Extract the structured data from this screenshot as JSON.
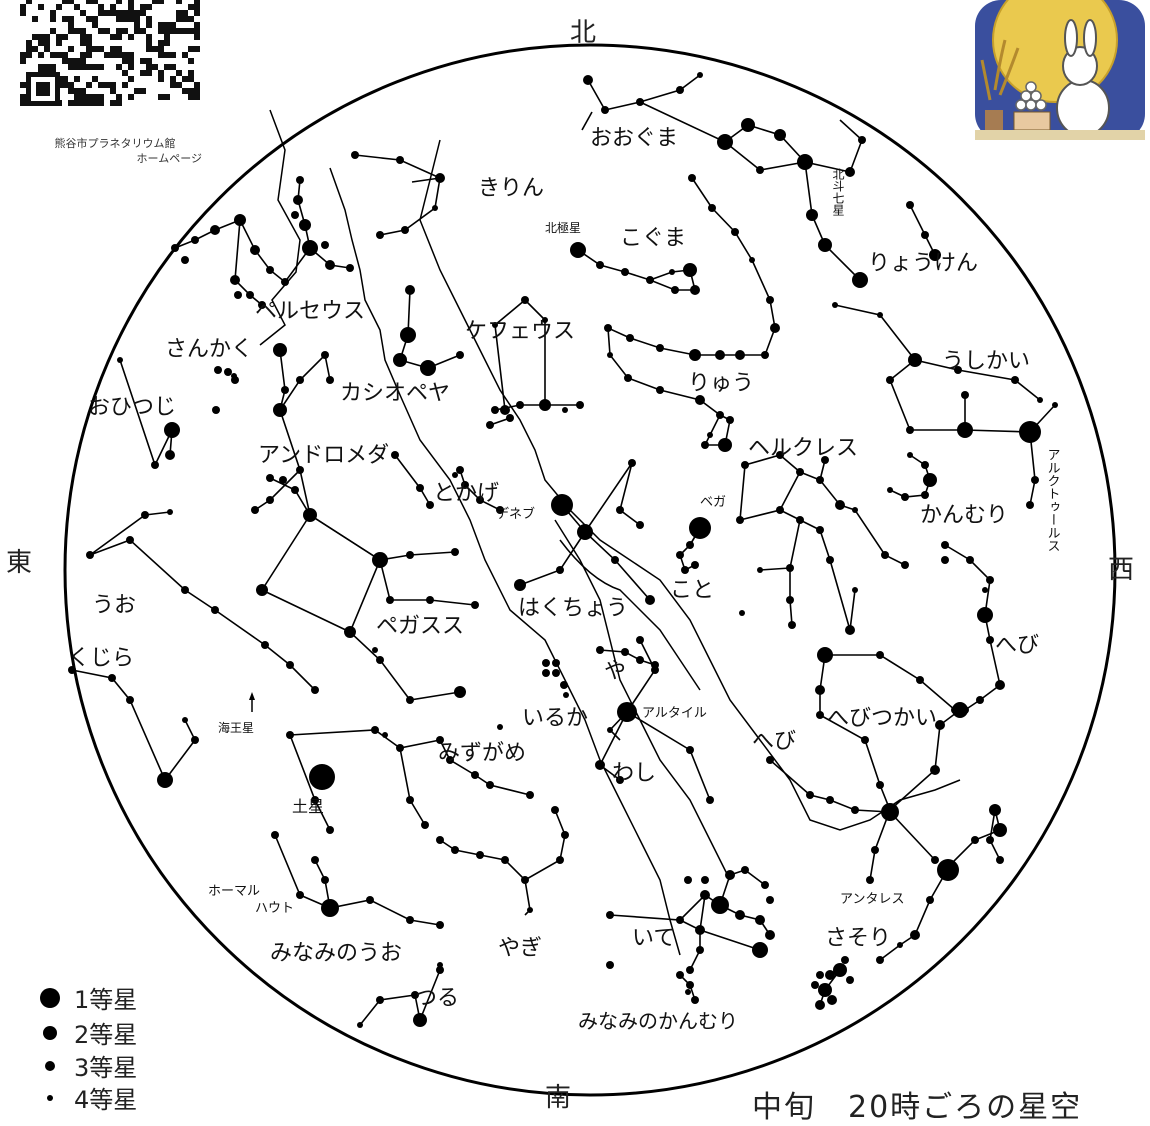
{
  "directions": {
    "north": "北",
    "south": "南",
    "east": "東",
    "west": "西"
  },
  "caption": "中旬　20時ごろの星空",
  "qr_caption": {
    "line1": "熊谷市プラネタリウム館",
    "line2": "ホームページ"
  },
  "legend": [
    {
      "label": "1等星"
    },
    {
      "label": "2等星"
    },
    {
      "label": "3等星"
    },
    {
      "label": "4等星"
    }
  ],
  "constellations": [
    {
      "id": "ursa-major",
      "label": "おおぐま"
    },
    {
      "id": "camelopardalis",
      "label": "きりん"
    },
    {
      "id": "ursa-minor",
      "label": "こぐま"
    },
    {
      "id": "canes-venatici",
      "label": "りょうけん"
    },
    {
      "id": "perseus",
      "label": "ペルセウス"
    },
    {
      "id": "cepheus",
      "label": "ケフェウス"
    },
    {
      "id": "triangulum",
      "label": "さんかく"
    },
    {
      "id": "cassiopeia",
      "label": "カシオペヤ"
    },
    {
      "id": "draco",
      "label": "りゅう"
    },
    {
      "id": "bootes",
      "label": "うしかい"
    },
    {
      "id": "aries",
      "label": "おひつじ"
    },
    {
      "id": "andromeda",
      "label": "アンドロメダ"
    },
    {
      "id": "hercules",
      "label": "ヘルクレス"
    },
    {
      "id": "lacerta",
      "label": "とかげ"
    },
    {
      "id": "corona-borealis",
      "label": "かんむり"
    },
    {
      "id": "cygnus",
      "label": "はくちょう"
    },
    {
      "id": "lyra",
      "label": "こと"
    },
    {
      "id": "pisces",
      "label": "うお"
    },
    {
      "id": "pegasus",
      "label": "ペガスス"
    },
    {
      "id": "serpens-caput",
      "label": "へび"
    },
    {
      "id": "cetus",
      "label": "くじら"
    },
    {
      "id": "sagitta",
      "label": "や"
    },
    {
      "id": "delphinus",
      "label": "いるか"
    },
    {
      "id": "ophiuchus",
      "label": "へびつかい"
    },
    {
      "id": "serpens-cauda",
      "label": "へび"
    },
    {
      "id": "aquarius",
      "label": "みずがめ"
    },
    {
      "id": "aquila",
      "label": "わし"
    },
    {
      "id": "sagittarius",
      "label": "いて"
    },
    {
      "id": "scorpius",
      "label": "さそり"
    },
    {
      "id": "capricornus",
      "label": "やぎ"
    },
    {
      "id": "piscis-austrinus",
      "label": "みなみのうお"
    },
    {
      "id": "grus",
      "label": "つる"
    },
    {
      "id": "corona-australis",
      "label": "みなみのかんむり"
    }
  ],
  "star_names": [
    {
      "id": "polaris",
      "label": "北極星"
    },
    {
      "id": "big-dipper",
      "label": "北斗七星"
    },
    {
      "id": "arcturus",
      "label": "アルクトゥールス"
    },
    {
      "id": "deneb",
      "label": "デネブ"
    },
    {
      "id": "vega",
      "label": "ベガ"
    },
    {
      "id": "altair",
      "label": "アルタイル"
    },
    {
      "id": "antares",
      "label": "アンタレス"
    },
    {
      "id": "fomalhaut-1",
      "label": "ホーマル"
    },
    {
      "id": "fomalhaut-2",
      "label": "ハウト"
    }
  ],
  "planets": [
    {
      "id": "saturn",
      "label": "土星"
    },
    {
      "id": "neptune",
      "label": "海王星"
    }
  ],
  "colors": {
    "ink": "#000000",
    "night_sky": "#3a4f9e",
    "moon": "#f3d04a"
  }
}
